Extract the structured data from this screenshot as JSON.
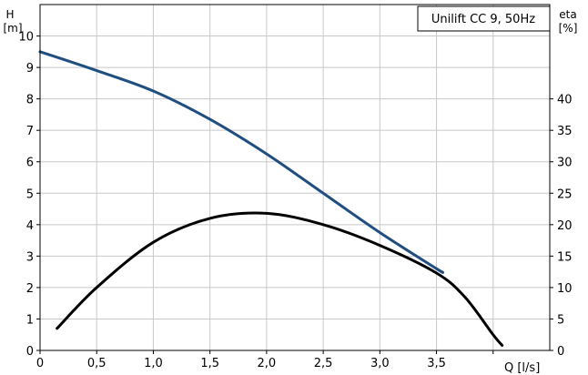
{
  "chart_data": {
    "type": "line",
    "title": "Unilift CC 9, 50Hz",
    "grid": true,
    "legend_position": "top-right",
    "x_axis": {
      "label": "Q [l/s]",
      "label_var": "Q",
      "label_unit": "[l/s]",
      "range": [
        0,
        4.5
      ],
      "ticks": [
        0,
        0.5,
        1.0,
        1.5,
        2.0,
        2.5,
        3.0,
        3.5,
        4.0
      ],
      "tick_labels": [
        "0",
        "0,5",
        "1,0",
        "1,5",
        "2,0",
        "2,5",
        "3,0",
        "3,5",
        ""
      ]
    },
    "y_left": {
      "label": "H [m]",
      "label_var": "H",
      "label_unit": "[m]",
      "range": [
        0,
        11
      ],
      "ticks": [
        0,
        1,
        2,
        3,
        4,
        5,
        6,
        7,
        8,
        9,
        10
      ],
      "tick_labels": [
        "0",
        "1",
        "2",
        "3",
        "4",
        "5",
        "6",
        "7",
        "8",
        "9",
        "10"
      ]
    },
    "y_right": {
      "label": "eta [%]",
      "label_var": "eta",
      "label_unit": "[%]",
      "range": [
        0,
        55
      ],
      "ticks": [
        0,
        5,
        10,
        15,
        20,
        25,
        30,
        35,
        40
      ],
      "tick_labels": [
        "0",
        "5",
        "10",
        "15",
        "20",
        "25",
        "30",
        "35",
        "40"
      ]
    },
    "series": [
      {
        "axis": "left",
        "color": "#1f4e80",
        "x": [
          0,
          0.5,
          1.0,
          1.5,
          2.0,
          2.5,
          3.0,
          3.5,
          3.55
        ],
        "y": [
          9.5,
          8.9,
          8.25,
          7.35,
          6.25,
          5.0,
          3.75,
          2.6,
          2.5
        ]
      },
      {
        "axis": "right",
        "color": "#000000",
        "x": [
          0.15,
          0.5,
          1.0,
          1.5,
          2.0,
          2.5,
          3.0,
          3.5,
          3.75,
          4.0,
          4.08
        ],
        "y": [
          3.5,
          10.0,
          17.2,
          21.0,
          21.8,
          20.0,
          16.7,
          12.3,
          8.5,
          2.5,
          0.8
        ]
      }
    ]
  }
}
